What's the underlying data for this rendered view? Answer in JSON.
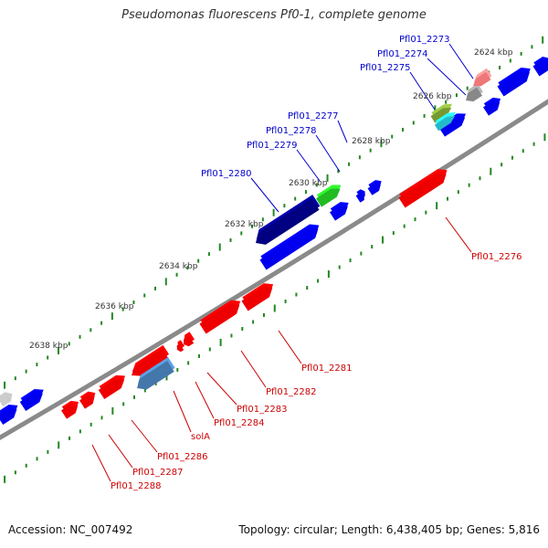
{
  "title": "Pseudomonas fluorescens Pf0-1, complete genome",
  "colors": {
    "backbone": "#8a8a8a",
    "tick": "#228822",
    "label_blue": "#0000cc",
    "label_red": "#cc0000",
    "gene_blue": "#0000ee",
    "gene_red": "#ee0000",
    "gene_navy": "#000080",
    "gene_green": "#22bb22",
    "gene_steelblue": "#4477aa",
    "gene_gray": "#888888",
    "gene_lightgray": "#cccccc",
    "gene_pink": "#ee7777",
    "gene_olive": "#779933",
    "gene_cyan": "#22bbcc"
  },
  "kbp_labels": [
    "2624 kbp",
    "2626 kbp",
    "2628 kbp",
    "2630 kbp",
    "2632 kbp",
    "2634 kbp",
    "2636 kbp",
    "2638 kbp"
  ],
  "gene_labels_top": [
    "Pfl01_2273",
    "Pfl01_2274",
    "Pfl01_2275",
    "Pfl01_2277",
    "Pfl01_2278",
    "Pfl01_2279",
    "Pfl01_2280"
  ],
  "gene_labels_bottom": [
    "Pfl01_2276",
    "Pfl01_2281",
    "Pfl01_2282",
    "Pfl01_2283",
    "Pfl01_2284",
    "solA",
    "Pfl01_2286",
    "Pfl01_2287",
    "Pfl01_2288"
  ],
  "footer": {
    "accession": "Accession: NC_007492",
    "summary": "Topology: circular; Length: 6,438,405 bp; Genes: 5,816"
  }
}
